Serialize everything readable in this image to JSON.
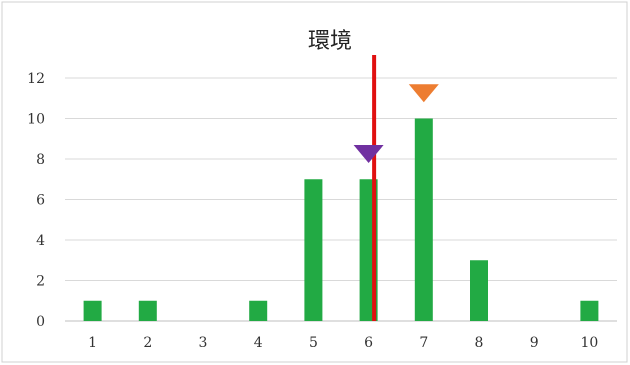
{
  "chart_data": {
    "type": "bar",
    "title": "環境",
    "categories": [
      "1",
      "2",
      "3",
      "4",
      "5",
      "6",
      "7",
      "8",
      "9",
      "10"
    ],
    "values": [
      1,
      1,
      0,
      1,
      7,
      7,
      10,
      3,
      0,
      1
    ],
    "xlabel": "",
    "ylabel": "",
    "ylim": [
      0,
      12
    ],
    "y_ticks": [
      "0",
      "2",
      "4",
      "6",
      "8",
      "10",
      "12"
    ],
    "grid": "horizontal",
    "legend": "none",
    "colors": {
      "bar": "#22aa44",
      "grid": "#d9d9d9",
      "axis": "#bfbfbf",
      "reference_line": "#e01010",
      "marker_orange": "#ed7d31",
      "marker_purple": "#7030a0",
      "frame": "#d0d0d0"
    },
    "reference_line": {
      "x": 6.1
    },
    "markers": [
      {
        "name": "orange-triangle",
        "x": 7,
        "y": 10.8,
        "color": "#ed7d31"
      },
      {
        "name": "purple-triangle",
        "x": 6,
        "y": 7.8,
        "color": "#7030a0"
      }
    ]
  }
}
